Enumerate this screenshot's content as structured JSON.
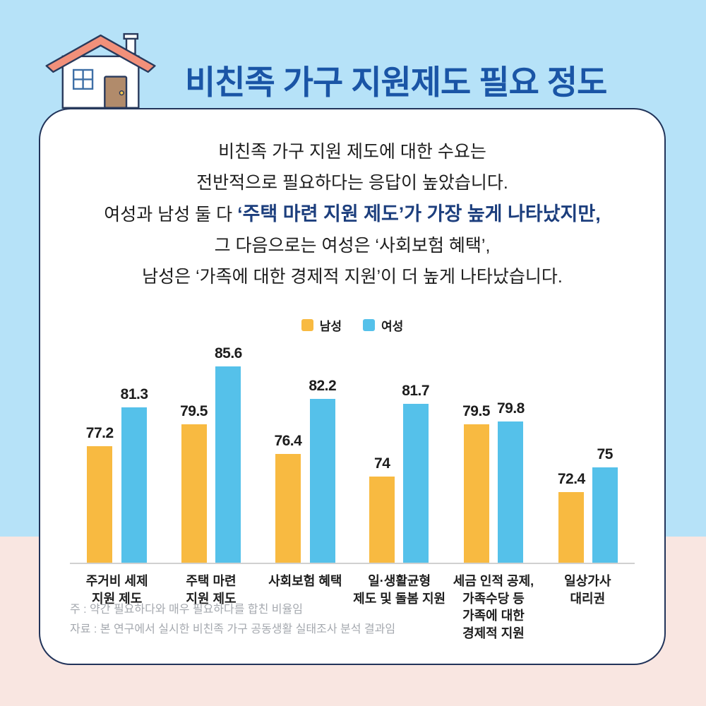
{
  "page": {
    "title": "비친족 가구 지원제도 필요 정도"
  },
  "intro": {
    "line1": "비친족 가구 지원 제도에 대한 수요는",
    "line2": "전반적으로 필요하다는 응답이 높았습니다.",
    "line3_normal": "여성과 남성 둘 다 ",
    "line3_bold": "‘주택 마련 지원 제도’가 가장 높게 나타났지만,",
    "line4": "그 다음으로는 여성은 ‘사회보험 혜택’,",
    "line5": "남성은 ‘가족에 대한 경제적 지원’이 더 높게 나타났습니다."
  },
  "chart_data": {
    "type": "bar",
    "title": "비친족 가구 지원제도 필요 정도",
    "unit": "%",
    "categories": [
      [
        "주거비 세제",
        "지원 제도"
      ],
      [
        "주택 마련",
        "지원 제도"
      ],
      [
        "사회보험 혜택"
      ],
      [
        "일·생활균형",
        "제도 및 돌봄 지원"
      ],
      [
        "세금 인적 공제,",
        "가족수당 등",
        "가족에 대한",
        "경제적 지원"
      ],
      [
        "일상가사",
        "대리권"
      ]
    ],
    "series": [
      {
        "name": "남성",
        "color": "#F8BA41",
        "values": [
          77.2,
          79.5,
          76.4,
          74,
          79.5,
          72.4
        ]
      },
      {
        "name": "여성",
        "color": "#55C1EA",
        "values": [
          81.3,
          85.6,
          82.2,
          81.7,
          79.8,
          75
        ]
      }
    ],
    "ylim": [
      65,
      90
    ],
    "xlabel": "",
    "ylabel": "",
    "grid": false,
    "value_labels": true,
    "legend_position": "top"
  },
  "footnotes": {
    "note": "주 : 약간 필요하다와 매우 필요하다를 합친 비율임",
    "source": "자료 : 본 연구에서 실시한 비친족 가구 공동생활 실태조사 분석 결과임"
  },
  "colors": {
    "background_top": "#B6E2F8",
    "background_bottom": "#F9E6E1",
    "card_border": "#22345A",
    "title_blue": "#1A55A6",
    "highlight_navy": "#1C3E7D",
    "male_bar": "#F8BA41",
    "female_bar": "#55C1EA",
    "axis_gray": "#D0D0D0",
    "footnote_gray": "#A5A9AF"
  }
}
